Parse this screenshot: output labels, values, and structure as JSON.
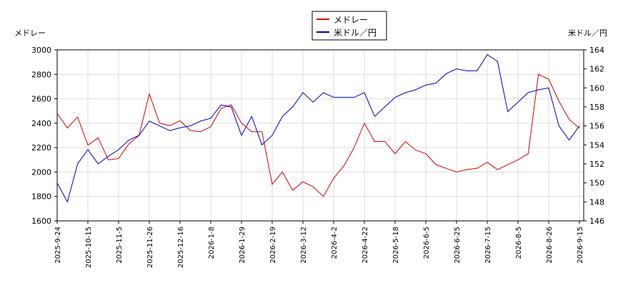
{
  "chart_data": {
    "type": "line",
    "y_label": "メドレー",
    "y2_label": "米ドル／円",
    "x": [
      "2025-9-24",
      "2025-10-1",
      "2025-10-8",
      "2025-10-15",
      "2025-10-22",
      "2025-10-29",
      "2025-11-5",
      "2025-11-12",
      "2025-11-19",
      "2025-11-26",
      "2025-12-3",
      "2025-12-10",
      "2025-12-16",
      "2025-12-23",
      "2025-12-30",
      "2026-1-8",
      "2026-1-15",
      "2026-1-22",
      "2026-1-29",
      "2026-2-5",
      "2026-2-12",
      "2026-2-19",
      "2026-2-26",
      "2026-3-5",
      "2026-3-12",
      "2026-3-19",
      "2026-3-26",
      "2026-4-2",
      "2026-4-9",
      "2026-4-15",
      "2026-4-22",
      "2026-5-1",
      "2026-5-11",
      "2026-5-18",
      "2026-5-25",
      "2026-5-29",
      "2026-6-5",
      "2026-6-12",
      "2026-6-18",
      "2026-6-25",
      "2026-7-1",
      "2026-7-8",
      "2026-7-15",
      "2026-7-22",
      "2026-7-29",
      "2026-8-5",
      "2026-8-12",
      "2026-8-19",
      "2026-8-26",
      "2026-9-2",
      "2026-9-9",
      "2026-9-15"
    ],
    "xticks": [
      "2025-9-24",
      "2025-10-15",
      "2025-11-5",
      "2025-11-26",
      "2025-12-16",
      "2026-1-8",
      "2026-1-29",
      "2026-2-19",
      "2026-3-12",
      "2026-4-2",
      "2026-4-22",
      "2026-5-18",
      "2026-6-5",
      "2026-6-25",
      "2026-7-15",
      "2026-8-5",
      "2026-8-26",
      "2026-9-15"
    ],
    "series": [
      {
        "name": "メドレー",
        "color": "#dd0000",
        "axis": "y",
        "values": [
          2480,
          2360,
          2450,
          2220,
          2280,
          2100,
          2110,
          2230,
          2300,
          2640,
          2400,
          2380,
          2420,
          2340,
          2330,
          2370,
          2520,
          2550,
          2400,
          2330,
          2330,
          1900,
          2000,
          1850,
          1920,
          1880,
          1800,
          1950,
          2050,
          2200,
          2400,
          2250,
          2250,
          2150,
          2250,
          2180,
          2150,
          2060,
          2030,
          2000,
          2020,
          2030,
          2080,
          2020,
          2060,
          2100,
          2150,
          2800,
          2760,
          2580,
          2430,
          2360
        ]
      },
      {
        "name": "米ドル／円",
        "color": "#0000cc",
        "axis": "y2",
        "values": [
          150.0,
          148.0,
          152.0,
          153.5,
          152.0,
          152.8,
          153.5,
          154.5,
          155.0,
          156.5,
          156.0,
          155.5,
          155.8,
          156.0,
          156.5,
          156.8,
          158.2,
          158.0,
          155.0,
          157.0,
          154.0,
          155.0,
          157.0,
          158.0,
          159.5,
          158.5,
          159.5,
          159.0,
          159.0,
          159.0,
          159.5,
          157.0,
          158.0,
          159.0,
          159.5,
          159.8,
          160.3,
          160.5,
          161.5,
          162.0,
          161.8,
          161.8,
          163.5,
          162.8,
          157.5,
          158.5,
          159.5,
          159.8,
          160.0,
          156.0,
          154.5,
          156.0
        ]
      }
    ],
    "ylim": [
      1600,
      3000
    ],
    "yticks": [
      1600,
      1800,
      2000,
      2200,
      2400,
      2600,
      2800,
      3000
    ],
    "y2lim": [
      146,
      164
    ],
    "y2ticks": [
      146,
      148,
      150,
      152,
      154,
      156,
      158,
      160,
      162,
      164
    ],
    "grid": true,
    "legend": "top"
  }
}
